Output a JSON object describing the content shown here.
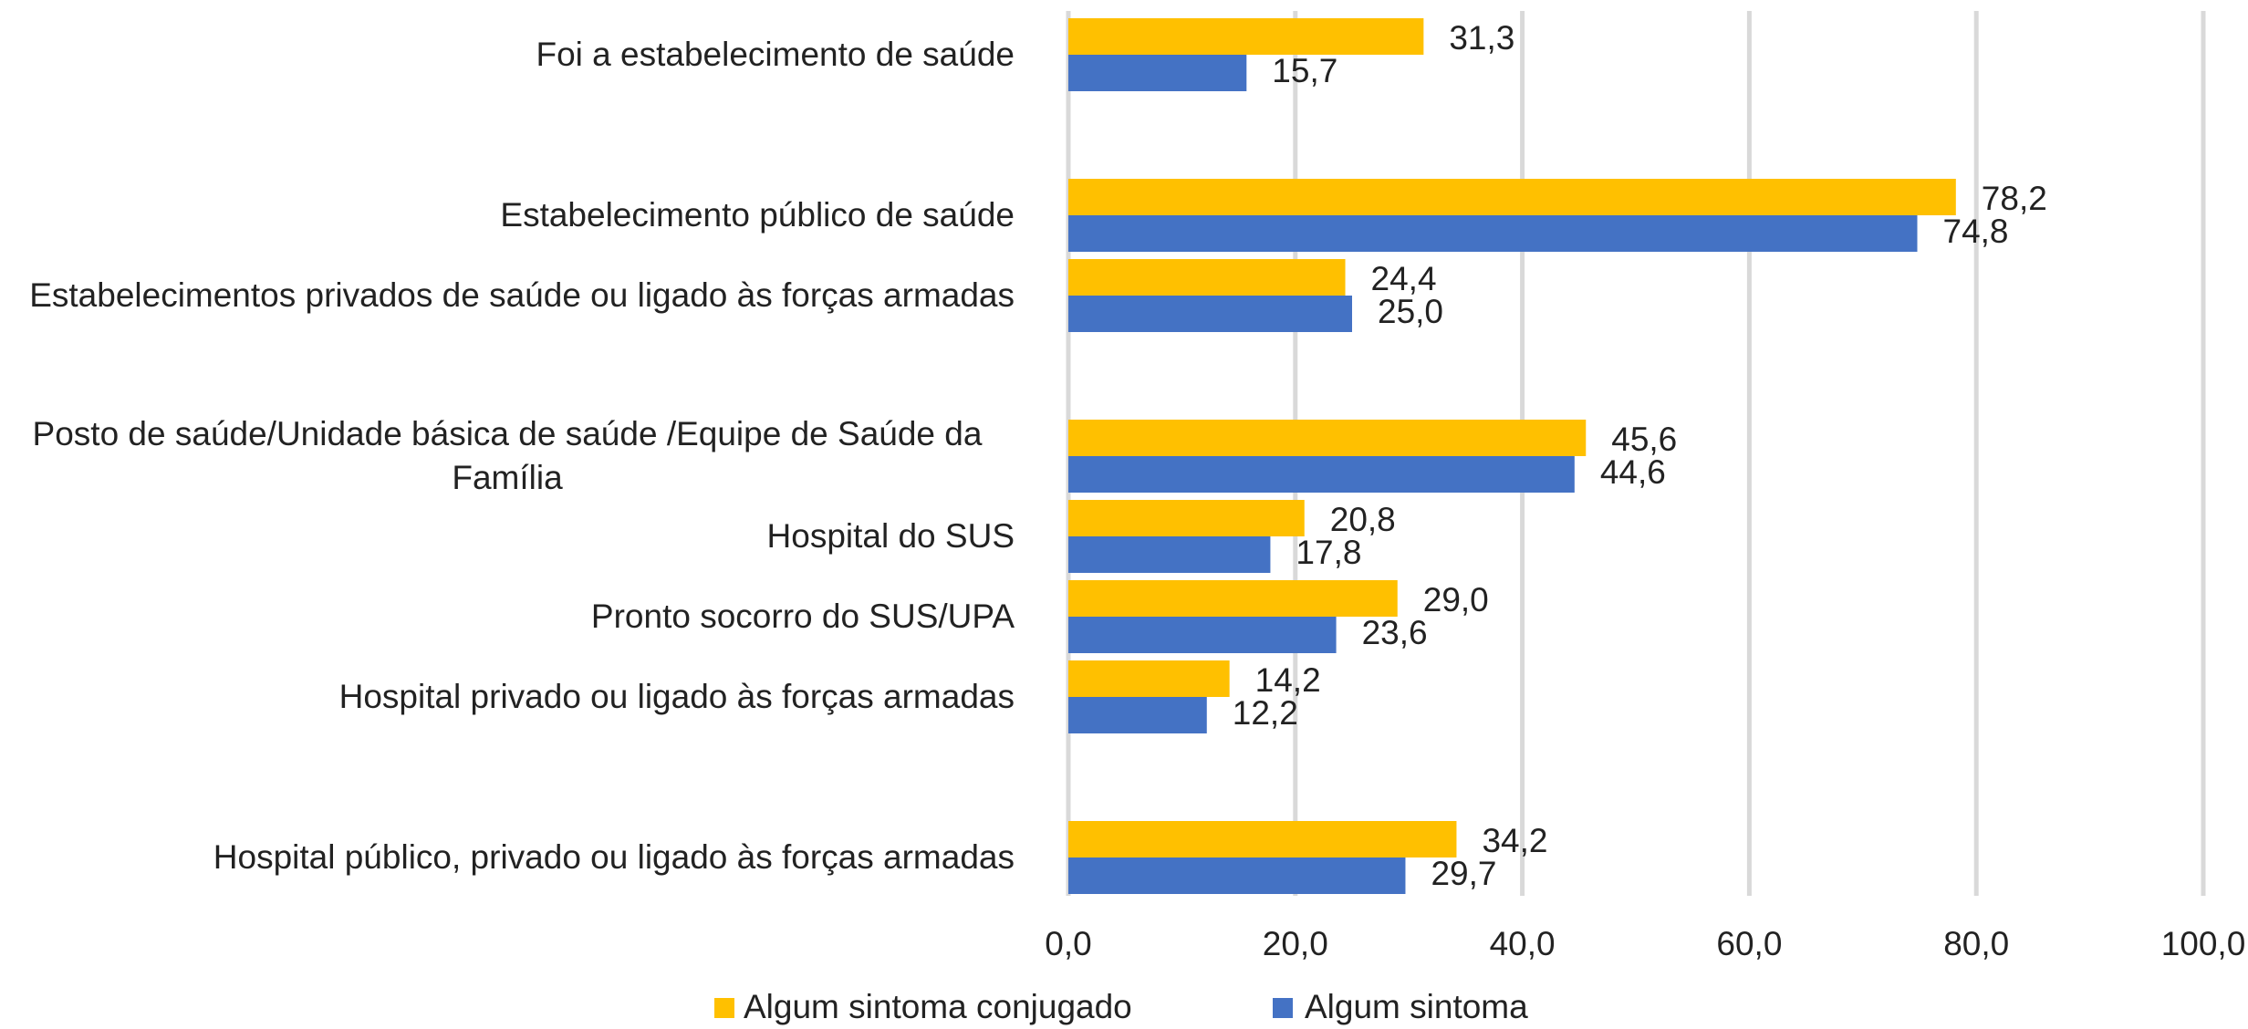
{
  "chart_data": {
    "type": "bar",
    "orientation": "horizontal",
    "categories": [
      "Foi a estabelecimento de saúde",
      null,
      "Estabelecimento público de saúde",
      "Estabelecimentos privados de saúde ou ligado às forças armadas",
      null,
      "Posto de saúde/Unidade básica de saúde /Equipe de Saúde da Família",
      "Hospital do SUS",
      "Pronto socorro do SUS/UPA",
      "Hospital privado ou ligado às forças armadas",
      null,
      "Hospital público, privado ou ligado às forças armadas"
    ],
    "series": [
      {
        "name": "Algum sintoma conjugado",
        "color": "#ffc000",
        "values": [
          31.3,
          null,
          78.2,
          24.4,
          null,
          45.6,
          20.8,
          29.0,
          14.2,
          null,
          34.2
        ],
        "value_labels": [
          "31,3",
          null,
          "78,2",
          "24,4",
          null,
          "45,6",
          "20,8",
          "29,0",
          "14,2",
          null,
          "34,2"
        ]
      },
      {
        "name": "Algum sintoma",
        "color": "#4472c4",
        "values": [
          15.7,
          null,
          74.8,
          25.0,
          null,
          44.6,
          17.8,
          23.6,
          12.2,
          null,
          29.7
        ],
        "value_labels": [
          "15,7",
          null,
          "74,8",
          "25,0",
          null,
          "44,6",
          "17,8",
          "23,6",
          "12,2",
          null,
          "29,7"
        ]
      }
    ],
    "xlim": [
      0,
      100
    ],
    "xticks": [
      {
        "value": 0,
        "label": "0,0"
      },
      {
        "value": 20,
        "label": "20,0"
      },
      {
        "value": 40,
        "label": "40,0"
      },
      {
        "value": 60,
        "label": "60,0"
      },
      {
        "value": 80,
        "label": "80,0"
      },
      {
        "value": 100,
        "label": "100,0"
      }
    ],
    "grid": true,
    "legend": "bottom"
  }
}
